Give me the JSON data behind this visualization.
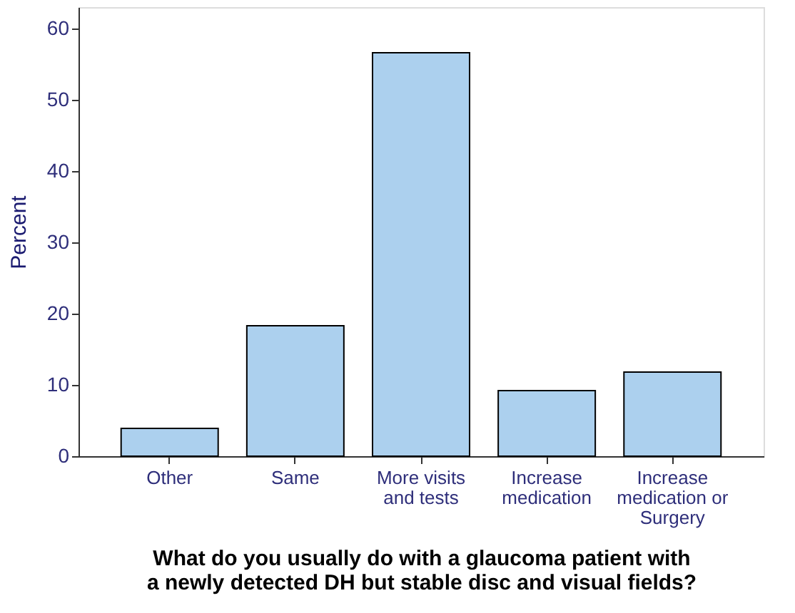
{
  "chart_data": {
    "type": "bar",
    "categories": [
      "Other",
      "Same",
      "More visits\nand tests",
      "Increase\nmedication",
      "Increase\nmedication or\nSurgery"
    ],
    "values": [
      3.9,
      18.3,
      56.6,
      9.2,
      11.8
    ],
    "color": "#acd0ee",
    "ylabel": "Percent",
    "xlabel": "What do you usually do with a glaucoma patient with\na newly detected DH but stable disc and visual fields?",
    "ylim": [
      0,
      63
    ],
    "yticks": [
      0,
      10,
      20,
      30,
      40,
      50,
      60
    ],
    "grid": false
  }
}
